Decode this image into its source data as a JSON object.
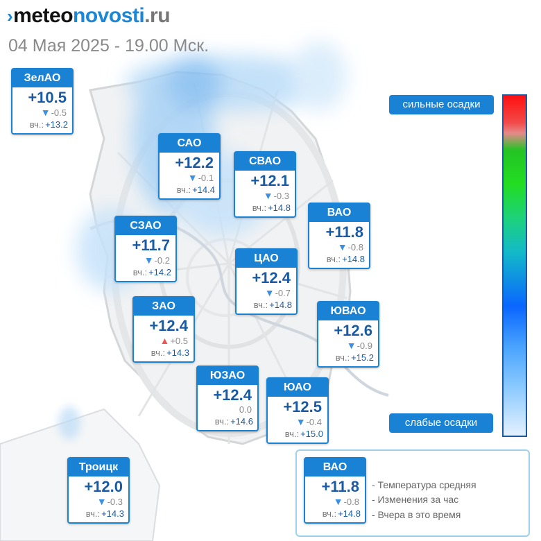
{
  "site": {
    "mark": "›",
    "part1": "meteo",
    "part2": "novosti",
    "part3": ".ru"
  },
  "subtitle": "04 Мая 2025 - 19.00 Мск.",
  "yesterday_label": "вч.:",
  "districts": [
    {
      "name": "ЗелАО",
      "temp": "+10.5",
      "change": "-0.5",
      "trend": "down",
      "yesterday": "+13.2"
    },
    {
      "name": "САО",
      "temp": "+12.2",
      "change": "-0.1",
      "trend": "down",
      "yesterday": "+14.4"
    },
    {
      "name": "СВАО",
      "temp": "+12.1",
      "change": "-0.3",
      "trend": "down",
      "yesterday": "+14.8"
    },
    {
      "name": "ВАО",
      "temp": "+11.8",
      "change": "-0.8",
      "trend": "down",
      "yesterday": "+14.8"
    },
    {
      "name": "СЗАО",
      "temp": "+11.7",
      "change": "-0.2",
      "trend": "down",
      "yesterday": "+14.2"
    },
    {
      "name": "ЦАО",
      "temp": "+12.4",
      "change": "-0.7",
      "trend": "down",
      "yesterday": "+14.8"
    },
    {
      "name": "ЗАО",
      "temp": "+12.4",
      "change": "+0.5",
      "trend": "up",
      "yesterday": "+14.3"
    },
    {
      "name": "ЮВАО",
      "temp": "+12.6",
      "change": "-0.9",
      "trend": "down",
      "yesterday": "+15.2"
    },
    {
      "name": "ЮЗАО",
      "temp": "+12.4",
      "change": "0.0",
      "trend": "none",
      "yesterday": "+14.6"
    },
    {
      "name": "ЮАО",
      "temp": "+12.5",
      "change": "-0.4",
      "trend": "down",
      "yesterday": "+15.0"
    },
    {
      "name": "Троицк",
      "temp": "+12.0",
      "change": "-0.3",
      "trend": "down",
      "yesterday": "+14.3"
    }
  ],
  "scale": {
    "top_label": "сильные осадки",
    "bottom_label": "слабые осадки",
    "colors": [
      "#ff1010",
      "#22dd22",
      "#0a66ff",
      "#e4f1ff"
    ]
  },
  "legend": {
    "example": {
      "name": "ВАО",
      "temp": "+11.8",
      "change": "-0.8",
      "trend": "down",
      "yesterday": "+14.8"
    },
    "lines": [
      "- Температура средняя",
      "- Изменения за час",
      "- Вчера в это время"
    ]
  },
  "colors": {
    "accent": "#1a82d4",
    "temp_text": "#1a5aa3",
    "down": "#3a8fe0",
    "up": "#e85a5a"
  }
}
